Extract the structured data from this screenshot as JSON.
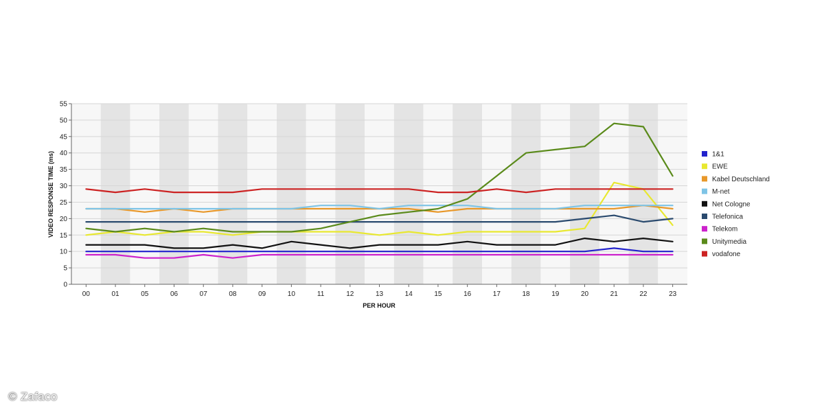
{
  "watermark": "© Zafaco",
  "chart_data": {
    "type": "line",
    "xlabel": "PER HOUR",
    "ylabel": "VIDEO RESPONSE TIME (ms)",
    "categories": [
      "00",
      "01",
      "05",
      "06",
      "07",
      "08",
      "09",
      "10",
      "11",
      "12",
      "13",
      "14",
      "15",
      "16",
      "17",
      "18",
      "19",
      "20",
      "21",
      "22",
      "23"
    ],
    "ylim": [
      0,
      55
    ],
    "yticks": [
      0,
      5,
      10,
      15,
      20,
      25,
      30,
      35,
      40,
      45,
      50,
      55
    ],
    "grid": true,
    "legend_position": "right",
    "series": [
      {
        "name": "1&1",
        "color": "#2222cc",
        "values": [
          10,
          10,
          10,
          10,
          10,
          10,
          10,
          10,
          10,
          10,
          10,
          10,
          10,
          10,
          10,
          10,
          10,
          10,
          11,
          10,
          10
        ]
      },
      {
        "name": "EWE",
        "color": "#e8e830",
        "values": [
          15,
          16,
          15,
          16,
          16,
          15,
          16,
          16,
          16,
          16,
          15,
          16,
          15,
          16,
          16,
          16,
          16,
          17,
          31,
          29,
          18
        ]
      },
      {
        "name": "Kabel Deutschland",
        "color": "#e8982a",
        "values": [
          23,
          23,
          22,
          23,
          22,
          23,
          23,
          23,
          23,
          23,
          23,
          23,
          22,
          23,
          23,
          23,
          23,
          23,
          23,
          24,
          23
        ]
      },
      {
        "name": "M-net",
        "color": "#7ec4e6",
        "values": [
          23,
          23,
          23,
          23,
          23,
          23,
          23,
          23,
          24,
          24,
          23,
          24,
          24,
          24,
          23,
          23,
          23,
          24,
          24,
          24,
          24
        ]
      },
      {
        "name": "Net Cologne",
        "color": "#111111",
        "values": [
          12,
          12,
          12,
          11,
          11,
          12,
          11,
          13,
          12,
          11,
          12,
          12,
          12,
          13,
          12,
          12,
          12,
          14,
          13,
          14,
          13
        ]
      },
      {
        "name": "Telefonica",
        "color": "#2a4a6e",
        "values": [
          19,
          19,
          19,
          19,
          19,
          19,
          19,
          19,
          19,
          19,
          19,
          19,
          19,
          19,
          19,
          19,
          19,
          20,
          21,
          19,
          20
        ]
      },
      {
        "name": "Telekom",
        "color": "#cc22cc",
        "values": [
          9,
          9,
          8,
          8,
          9,
          8,
          9,
          9,
          9,
          9,
          9,
          9,
          9,
          9,
          9,
          9,
          9,
          9,
          9,
          9,
          9
        ]
      },
      {
        "name": "Unitymedia",
        "color": "#5a8a1a",
        "values": [
          17,
          16,
          17,
          16,
          17,
          16,
          16,
          16,
          17,
          19,
          21,
          22,
          23,
          26,
          33,
          40,
          41,
          42,
          49,
          48,
          33
        ]
      },
      {
        "name": "vodafone",
        "color": "#cc2222",
        "values": [
          29,
          28,
          29,
          28,
          28,
          28,
          29,
          29,
          29,
          29,
          29,
          29,
          28,
          28,
          29,
          28,
          29,
          29,
          29,
          29,
          29
        ]
      }
    ]
  }
}
